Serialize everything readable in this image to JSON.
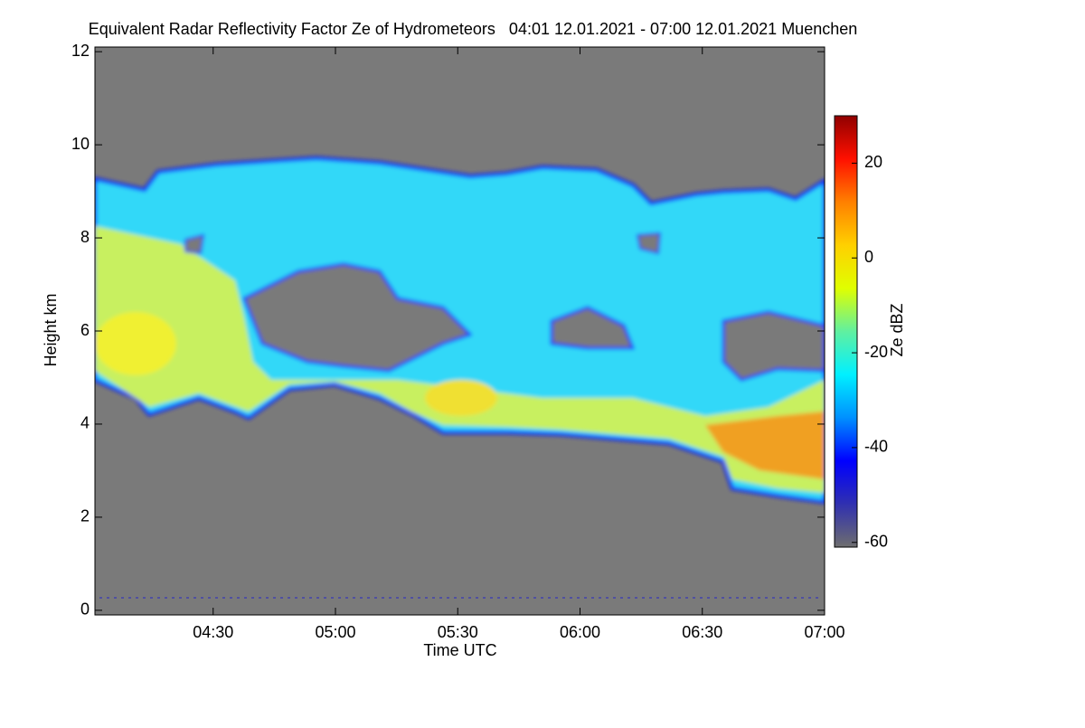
{
  "chart_data": {
    "type": "heatmap",
    "title": "Equivalent Radar Reflectivity Factor Ze of Hydrometeors   04:01 12.01.2021 - 07:00 12.01.2021 Muenchen",
    "xlabel": "Time UTC",
    "ylabel": "Height km",
    "xlim": [
      241,
      420
    ],
    "xticks": [
      {
        "value": 270,
        "label": "04:30"
      },
      {
        "value": 300,
        "label": "05:00"
      },
      {
        "value": 330,
        "label": "05:30"
      },
      {
        "value": 360,
        "label": "06:00"
      },
      {
        "value": 390,
        "label": "06:30"
      },
      {
        "value": 420,
        "label": "07:00"
      }
    ],
    "ylim": [
      -0.1,
      12.1
    ],
    "yticks": [
      0,
      2,
      4,
      6,
      8,
      10,
      12
    ],
    "colorbar": {
      "label": "Ze dBZ",
      "lim": [
        -61,
        30
      ],
      "ticks": [
        -60,
        -40,
        -20,
        0,
        20
      ],
      "colors": [
        "#6e6e6e",
        "#3030b0",
        "#0000ff",
        "#0090ff",
        "#00f0ff",
        "#60f0a0",
        "#e0ff00",
        "#ffd000",
        "#ff8000",
        "#ff1000",
        "#900000"
      ]
    }
  }
}
